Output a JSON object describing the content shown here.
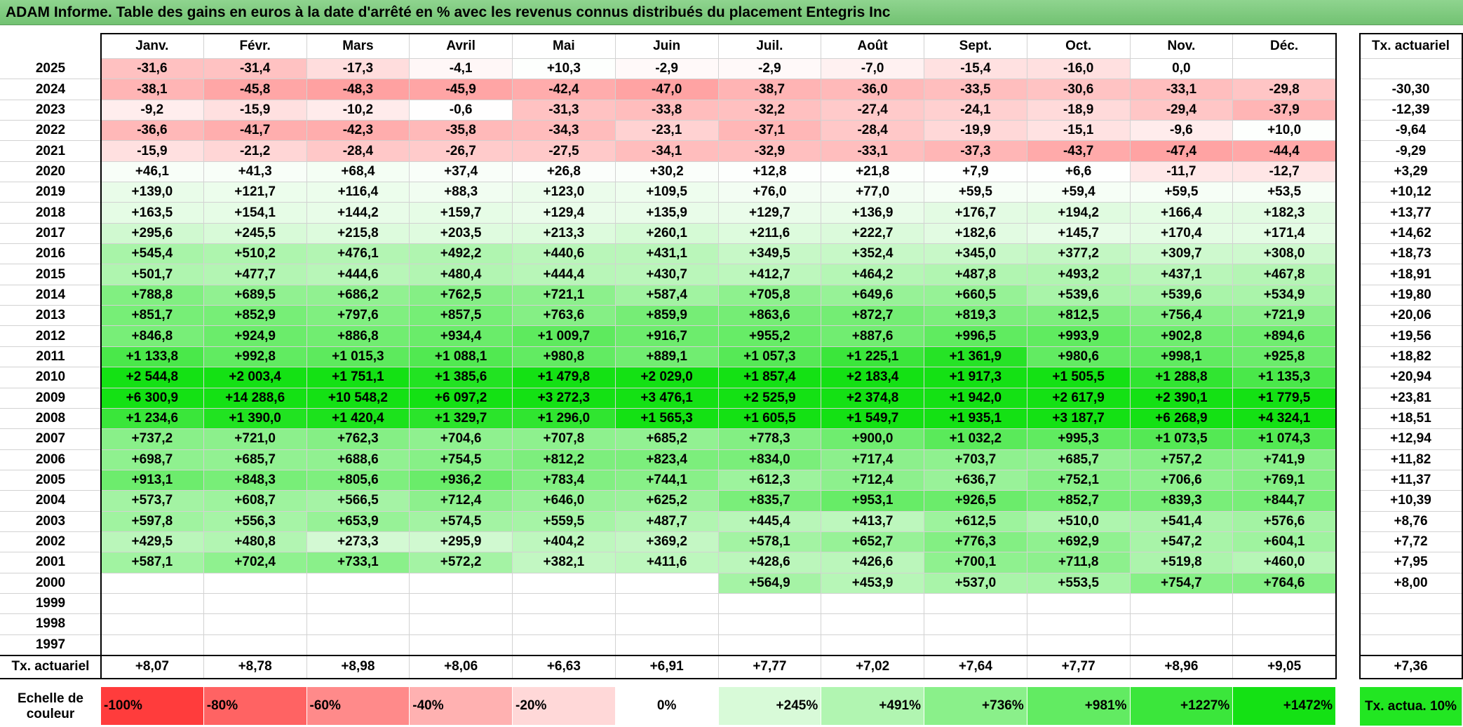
{
  "title": "ADAM Informe. Table des gains en euros à la date d'arrêté en % avec les revenus connus distribués du placement Entegris Inc",
  "table": {
    "columns": [
      "Janv.",
      "Févr.",
      "Mars",
      "Avril",
      "Mai",
      "Juin",
      "Juil.",
      "Août",
      "Sept.",
      "Oct.",
      "Nov.",
      "Déc."
    ],
    "total_header": "Tx. actuariel",
    "rows": [
      {
        "year": "2025",
        "values": [
          "-31,6",
          "-31,4",
          "-17,3",
          "-4,1",
          "+10,3",
          "-2,9",
          "-2,9",
          "-7,0",
          "-15,4",
          "-16,0",
          "0,0",
          null
        ],
        "total": null
      },
      {
        "year": "2024",
        "values": [
          "-38,1",
          "-45,8",
          "-48,3",
          "-45,9",
          "-42,4",
          "-47,0",
          "-38,7",
          "-36,0",
          "-33,5",
          "-30,6",
          "-33,1",
          "-29,8"
        ],
        "total": "-30,30"
      },
      {
        "year": "2023",
        "values": [
          "-9,2",
          "-15,9",
          "-10,2",
          "-0,6",
          "-31,3",
          "-33,8",
          "-32,2",
          "-27,4",
          "-24,1",
          "-18,9",
          "-29,4",
          "-37,9"
        ],
        "total": "-12,39"
      },
      {
        "year": "2022",
        "values": [
          "-36,6",
          "-41,7",
          "-42,3",
          "-35,8",
          "-34,3",
          "-23,1",
          "-37,1",
          "-28,4",
          "-19,9",
          "-15,1",
          "-9,6",
          "+10,0"
        ],
        "total": "-9,64"
      },
      {
        "year": "2021",
        "values": [
          "-15,9",
          "-21,2",
          "-28,4",
          "-26,7",
          "-27,5",
          "-34,1",
          "-32,9",
          "-33,1",
          "-37,3",
          "-43,7",
          "-47,4",
          "-44,4"
        ],
        "total": "-9,29"
      },
      {
        "year": "2020",
        "values": [
          "+46,1",
          "+41,3",
          "+68,4",
          "+37,4",
          "+26,8",
          "+30,2",
          "+12,8",
          "+21,8",
          "+7,9",
          "+6,6",
          "-11,7",
          "-12,7"
        ],
        "total": "+3,29"
      },
      {
        "year": "2019",
        "values": [
          "+139,0",
          "+121,7",
          "+116,4",
          "+88,3",
          "+123,0",
          "+109,5",
          "+76,0",
          "+77,0",
          "+59,5",
          "+59,4",
          "+59,5",
          "+53,5"
        ],
        "total": "+10,12"
      },
      {
        "year": "2018",
        "values": [
          "+163,5",
          "+154,1",
          "+144,2",
          "+159,7",
          "+129,4",
          "+135,9",
          "+129,7",
          "+136,9",
          "+176,7",
          "+194,2",
          "+166,4",
          "+182,3"
        ],
        "total": "+13,77"
      },
      {
        "year": "2017",
        "values": [
          "+295,6",
          "+245,5",
          "+215,8",
          "+203,5",
          "+213,3",
          "+260,1",
          "+211,6",
          "+222,7",
          "+182,6",
          "+145,7",
          "+170,4",
          "+171,4"
        ],
        "total": "+14,62"
      },
      {
        "year": "2016",
        "values": [
          "+545,4",
          "+510,2",
          "+476,1",
          "+492,2",
          "+440,6",
          "+431,1",
          "+349,5",
          "+352,4",
          "+345,0",
          "+377,2",
          "+309,7",
          "+308,0"
        ],
        "total": "+18,73"
      },
      {
        "year": "2015",
        "values": [
          "+501,7",
          "+477,7",
          "+444,6",
          "+480,4",
          "+444,4",
          "+430,7",
          "+412,7",
          "+464,2",
          "+487,8",
          "+493,2",
          "+437,1",
          "+467,8"
        ],
        "total": "+18,91"
      },
      {
        "year": "2014",
        "values": [
          "+788,8",
          "+689,5",
          "+686,2",
          "+762,5",
          "+721,1",
          "+587,4",
          "+705,8",
          "+649,6",
          "+660,5",
          "+539,6",
          "+539,6",
          "+534,9"
        ],
        "total": "+19,80"
      },
      {
        "year": "2013",
        "values": [
          "+851,7",
          "+852,9",
          "+797,6",
          "+857,5",
          "+763,6",
          "+859,9",
          "+863,6",
          "+872,7",
          "+819,3",
          "+812,5",
          "+756,4",
          "+721,9"
        ],
        "total": "+20,06"
      },
      {
        "year": "2012",
        "values": [
          "+846,8",
          "+924,9",
          "+886,8",
          "+934,4",
          "+1 009,7",
          "+916,7",
          "+955,2",
          "+887,6",
          "+996,5",
          "+993,9",
          "+902,8",
          "+894,6"
        ],
        "total": "+19,56"
      },
      {
        "year": "2011",
        "values": [
          "+1 133,8",
          "+992,8",
          "+1 015,3",
          "+1 088,1",
          "+980,8",
          "+889,1",
          "+1 057,3",
          "+1 225,1",
          "+1 361,9",
          "+980,6",
          "+998,1",
          "+925,8"
        ],
        "total": "+18,82"
      },
      {
        "year": "2010",
        "values": [
          "+2 544,8",
          "+2 003,4",
          "+1 751,1",
          "+1 385,6",
          "+1 479,8",
          "+2 029,0",
          "+1 857,4",
          "+2 183,4",
          "+1 917,3",
          "+1 505,5",
          "+1 288,8",
          "+1 135,3"
        ],
        "total": "+20,94"
      },
      {
        "year": "2009",
        "values": [
          "+6 300,9",
          "+14 288,6",
          "+10 548,2",
          "+6 097,2",
          "+3 272,3",
          "+3 476,1",
          "+2 525,9",
          "+2 374,8",
          "+1 942,0",
          "+2 617,9",
          "+2 390,1",
          "+1 779,5"
        ],
        "total": "+23,81"
      },
      {
        "year": "2008",
        "values": [
          "+1 234,6",
          "+1 390,0",
          "+1 420,4",
          "+1 329,7",
          "+1 296,0",
          "+1 565,3",
          "+1 605,5",
          "+1 549,7",
          "+1 935,1",
          "+3 187,7",
          "+6 268,9",
          "+4 324,1"
        ],
        "total": "+18,51"
      },
      {
        "year": "2007",
        "values": [
          "+737,2",
          "+721,0",
          "+762,3",
          "+704,6",
          "+707,8",
          "+685,2",
          "+778,3",
          "+900,0",
          "+1 032,2",
          "+995,3",
          "+1 073,5",
          "+1 074,3"
        ],
        "total": "+12,94"
      },
      {
        "year": "2006",
        "values": [
          "+698,7",
          "+685,7",
          "+688,6",
          "+754,5",
          "+812,2",
          "+823,4",
          "+834,0",
          "+717,4",
          "+703,7",
          "+685,7",
          "+757,2",
          "+741,9"
        ],
        "total": "+11,82"
      },
      {
        "year": "2005",
        "values": [
          "+913,1",
          "+848,3",
          "+805,6",
          "+936,2",
          "+783,4",
          "+744,1",
          "+612,3",
          "+712,4",
          "+636,7",
          "+752,1",
          "+706,6",
          "+769,1"
        ],
        "total": "+11,37"
      },
      {
        "year": "2004",
        "values": [
          "+573,7",
          "+608,7",
          "+566,5",
          "+712,4",
          "+646,0",
          "+625,2",
          "+835,7",
          "+953,1",
          "+926,5",
          "+852,7",
          "+839,3",
          "+844,7"
        ],
        "total": "+10,39"
      },
      {
        "year": "2003",
        "values": [
          "+597,8",
          "+556,3",
          "+653,9",
          "+574,5",
          "+559,5",
          "+487,7",
          "+445,4",
          "+413,7",
          "+612,5",
          "+510,0",
          "+541,4",
          "+576,6"
        ],
        "total": "+8,76"
      },
      {
        "year": "2002",
        "values": [
          "+429,5",
          "+480,8",
          "+273,3",
          "+295,9",
          "+404,2",
          "+369,2",
          "+578,1",
          "+652,7",
          "+776,3",
          "+692,9",
          "+547,2",
          "+604,1"
        ],
        "total": "+7,72"
      },
      {
        "year": "2001",
        "values": [
          "+587,1",
          "+702,4",
          "+733,1",
          "+572,2",
          "+382,1",
          "+411,6",
          "+428,6",
          "+426,6",
          "+700,1",
          "+711,8",
          "+519,8",
          "+460,0"
        ],
        "total": "+7,95"
      },
      {
        "year": "2000",
        "values": [
          null,
          null,
          null,
          null,
          null,
          null,
          "+564,9",
          "+453,9",
          "+537,0",
          "+553,5",
          "+754,7",
          "+764,6"
        ],
        "total": "+8,00"
      },
      {
        "year": "1999",
        "values": [
          null,
          null,
          null,
          null,
          null,
          null,
          null,
          null,
          null,
          null,
          null,
          null
        ],
        "total": null
      },
      {
        "year": "1998",
        "values": [
          null,
          null,
          null,
          null,
          null,
          null,
          null,
          null,
          null,
          null,
          null,
          null
        ],
        "total": null
      },
      {
        "year": "1997",
        "values": [
          null,
          null,
          null,
          null,
          null,
          null,
          null,
          null,
          null,
          null,
          null,
          null
        ],
        "total": null
      }
    ],
    "footer": {
      "label": "Tx. actuariel",
      "values": [
        "+8,07",
        "+8,78",
        "+8,98",
        "+8,06",
        "+6,63",
        "+6,91",
        "+7,77",
        "+7,02",
        "+7,64",
        "+7,77",
        "+8,96",
        "+9,05"
      ],
      "total": "+7,36"
    },
    "legend": {
      "label": "Echelle de couleur",
      "values": [
        "-100%",
        "-80%",
        "-60%",
        "-40%",
        "-20%",
        "0%",
        "+245%",
        "+491%",
        "+736%",
        "+981%",
        "+1227%",
        "+1472%"
      ],
      "total": "Tx. actua. 10%"
    }
  }
}
